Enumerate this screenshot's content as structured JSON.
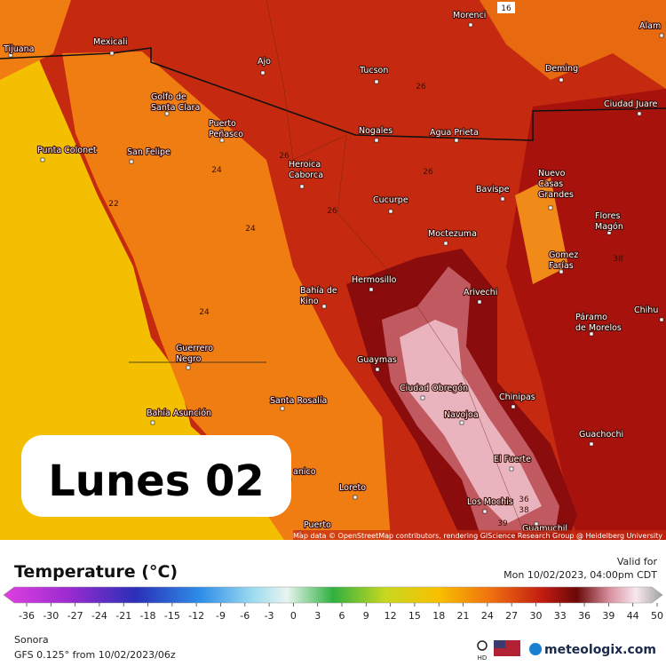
{
  "map": {
    "cities": [
      [
        "Tijuana"
      ],
      [
        "Mexicali"
      ],
      [
        "Morenci"
      ],
      [
        "Alam"
      ],
      [
        "Ajo"
      ],
      [
        "Tucson"
      ],
      [
        "Deming"
      ],
      [
        "Golfo de",
        "Santa Clara"
      ],
      [
        "Puerto",
        "Peñasco"
      ],
      [
        "Nogales"
      ],
      [
        "Agua Prieta"
      ],
      [
        "Ciudad Juare"
      ],
      [
        "Punta Colonet"
      ],
      [
        "San Felipe"
      ],
      [
        "Heroica",
        "Caborca"
      ],
      [
        "Nuevo",
        "Casas",
        "Grandes"
      ],
      [
        "Bavispe"
      ],
      [
        "Cucurpe"
      ],
      [
        "Flores",
        "Magón"
      ],
      [
        "Moctezuma"
      ],
      [
        "Gomez",
        "Farías"
      ],
      [
        "Hermosillo"
      ],
      [
        "Arivechi"
      ],
      [
        "Bahía de",
        "Kino"
      ],
      [
        "Chihu"
      ],
      [
        "Páramo",
        "de Morelos"
      ],
      [
        "Guerrero",
        "Negro"
      ],
      [
        "Guaymas"
      ],
      [
        "Ciudad Obregón"
      ],
      [
        "Chinipas"
      ],
      [
        "Navojoa"
      ],
      [
        "Bahía Asunción"
      ],
      [
        "Santa Rosalía"
      ],
      [
        "Guachochi"
      ],
      [
        "El Fuerte"
      ],
      [
        "Loreto"
      ],
      [
        "Los Mochis"
      ],
      [
        "Guamuchil"
      ],
      [
        "anico"
      ],
      [
        "Puerto"
      ]
    ],
    "contour_labels": [
      16,
      26,
      24,
      22,
      24,
      24,
      26,
      26,
      26,
      38,
      36,
      38,
      39
    ],
    "overlay_label": "Lunes 02",
    "attribution": "Map data © OpenStreetMap contributors, rendering GIScience Research Group @ Heidelberg University"
  },
  "legend": {
    "title": "Temperature (°C)",
    "valid_label": "Valid for",
    "valid_time": "Mon 10/02/2023, 04:00pm CDT",
    "ticks": [
      -36,
      -30,
      -27,
      -24,
      -21,
      -18,
      -15,
      -12,
      -9,
      -6,
      -3,
      0,
      3,
      6,
      9,
      12,
      15,
      18,
      21,
      24,
      27,
      30,
      33,
      36,
      39,
      44,
      50
    ]
  },
  "footer": {
    "region": "Sonora",
    "model": "GFS 0.125° from  10/02/2023/06z",
    "hd": "HD",
    "brand": "meteologix.com"
  }
}
